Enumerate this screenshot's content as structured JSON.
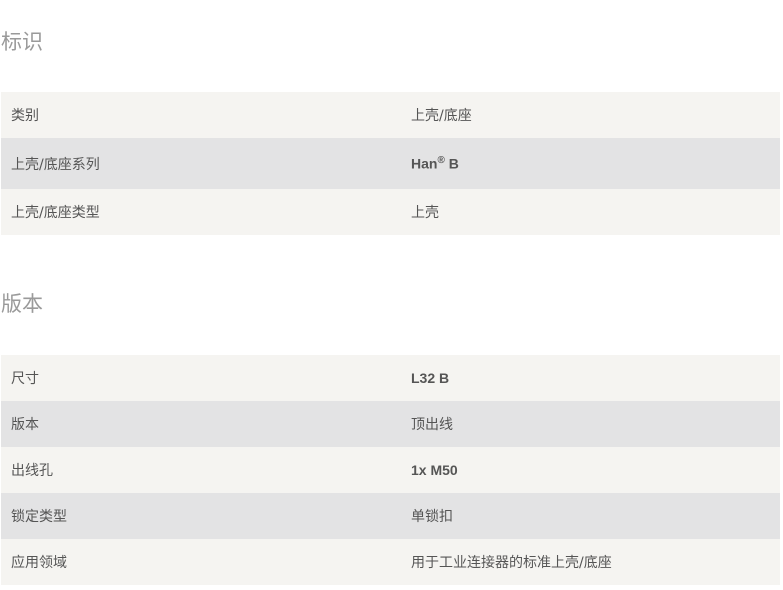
{
  "sections": [
    {
      "title": "标识",
      "rows": [
        {
          "label": "类别",
          "value": "上壳/底座"
        },
        {
          "label": "上壳/底座系列",
          "value": "Han",
          "value_sup": "®",
          "value_suffix": " B"
        },
        {
          "label": "上壳/底座类型",
          "value": "上壳"
        }
      ]
    },
    {
      "title": "版本",
      "rows": [
        {
          "label": "尺寸",
          "value": "L32 B"
        },
        {
          "label": "版本",
          "value": "顶出线"
        },
        {
          "label": "出线孔",
          "value": "1x M50"
        },
        {
          "label": "锁定类型",
          "value": "单锁扣"
        },
        {
          "label": "应用领域",
          "value": "用于工业连接器的标准上壳/底座"
        }
      ]
    }
  ]
}
